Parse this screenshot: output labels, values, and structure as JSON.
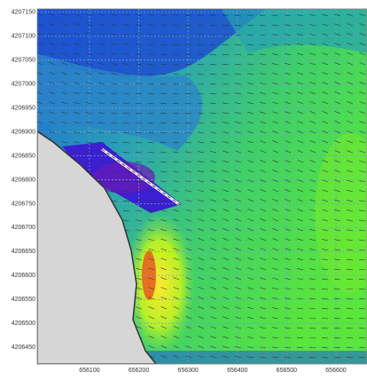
{
  "axes": {
    "xlim": [
      655994,
      656663
    ],
    "ylim": [
      4206415,
      4207157
    ],
    "xticks": [
      656100,
      656200,
      656300,
      656400,
      656500,
      656600
    ],
    "yticks": [
      4206450,
      4206500,
      4206550,
      4206600,
      4206650,
      4206700,
      4206750,
      4206800,
      4206850,
      4206900,
      4206950,
      4207000,
      4207050,
      4207100,
      4207150
    ],
    "grid": true
  }
}
